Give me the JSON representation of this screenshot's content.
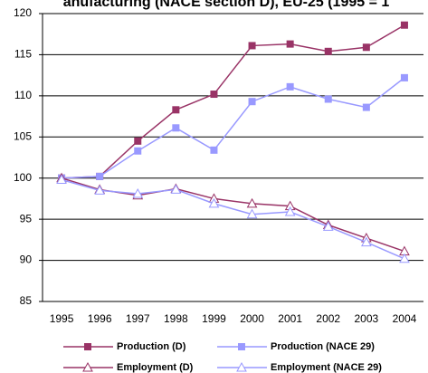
{
  "chart_data": {
    "type": "line",
    "title": "anufacturing (NACE section D), EU-25 (1995 = 1",
    "categories": [
      "1995",
      "1996",
      "1997",
      "1998",
      "1999",
      "2000",
      "2001",
      "2002",
      "2003",
      "2004"
    ],
    "ylim": [
      85,
      120
    ],
    "yticks": [
      85,
      90,
      95,
      100,
      105,
      110,
      115,
      120
    ],
    "grid": true,
    "series": [
      {
        "name": "Production (D)",
        "color": "#993366",
        "marker": "square",
        "values": [
          100,
          100.2,
          104.5,
          108.3,
          110.2,
          116.1,
          116.3,
          115.4,
          115.9,
          118.6
        ]
      },
      {
        "name": "Production (NACE 29)",
        "color": "#9999ff",
        "marker": "square",
        "values": [
          100,
          100.2,
          103.3,
          106.1,
          103.4,
          109.3,
          111.1,
          109.6,
          108.6,
          112.2
        ]
      },
      {
        "name": "Employment (D)",
        "color": "#993366",
        "marker": "triangle",
        "values": [
          100,
          98.6,
          97.9,
          98.7,
          97.5,
          96.9,
          96.6,
          94.3,
          92.7,
          91.1
        ]
      },
      {
        "name": "Employment (NACE 29)",
        "color": "#9999ff",
        "marker": "triangle",
        "values": [
          99.8,
          98.5,
          98.1,
          98.6,
          96.9,
          95.6,
          95.9,
          94.1,
          92.2,
          90.2
        ]
      }
    ]
  }
}
